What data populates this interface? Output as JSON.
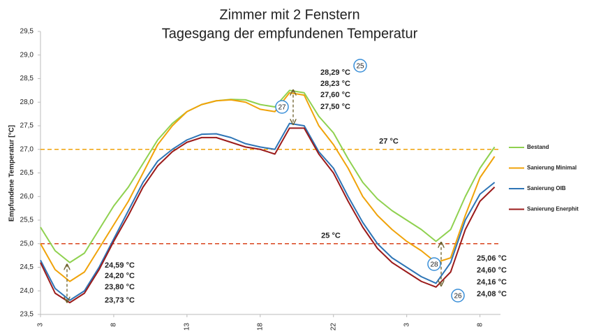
{
  "chart_data": {
    "type": "line",
    "title": [
      "Zimmer mit 2 Fenstern",
      "Tagesgang der empfundenen Temperatur"
    ],
    "y_label": "Empfundene Temperatur [°C]",
    "x": [
      0,
      1,
      2,
      3,
      4,
      5,
      6,
      7,
      8,
      9,
      10,
      11,
      12,
      13,
      14,
      15,
      16,
      17,
      18,
      19,
      20,
      21,
      22,
      23,
      24,
      25,
      26,
      27,
      28,
      29,
      30,
      31
    ],
    "xlim": [
      0,
      31.4
    ],
    "xticks": [
      {
        "value": 0,
        "label": "3"
      },
      {
        "value": 5,
        "label": "8"
      },
      {
        "value": 10,
        "label": "13"
      },
      {
        "value": 15,
        "label": "18"
      },
      {
        "value": 20,
        "label": "22"
      },
      {
        "value": 25,
        "label": "3"
      },
      {
        "value": 30,
        "label": "8"
      }
    ],
    "ylim": [
      23.5,
      29.5
    ],
    "yticks": [
      {
        "value": 23.5,
        "label": "23,5"
      },
      {
        "value": 24,
        "label": "24,0"
      },
      {
        "value": 24.5,
        "label": "24,5"
      },
      {
        "value": 25,
        "label": "25,0"
      },
      {
        "value": 25.5,
        "label": "25,5"
      },
      {
        "value": 26,
        "label": "26,0"
      },
      {
        "value": 26.5,
        "label": "26,5"
      },
      {
        "value": 27,
        "label": "27,0"
      },
      {
        "value": 27.5,
        "label": "27,5"
      },
      {
        "value": 28,
        "label": "28,0"
      },
      {
        "value": 28.5,
        "label": "28,5"
      },
      {
        "value": 29,
        "label": "29,0"
      },
      {
        "value": 29.5,
        "label": "29,5"
      }
    ],
    "grid": false,
    "legend": "right",
    "series": [
      {
        "name": "Bestand",
        "color": "#8fd14f",
        "values": [
          25.35,
          24.85,
          24.6,
          24.8,
          25.3,
          25.8,
          26.2,
          26.7,
          27.2,
          27.55,
          27.8,
          27.95,
          28.03,
          28.06,
          28.05,
          27.95,
          27.9,
          28.25,
          28.2,
          27.7,
          27.35,
          26.8,
          26.3,
          25.95,
          25.7,
          25.5,
          25.3,
          25.05,
          25.3,
          26.0,
          26.6,
          27.05
        ]
      },
      {
        "name": "Sanierung Minimal",
        "color": "#f0a30a",
        "values": [
          25.0,
          24.45,
          24.2,
          24.4,
          24.9,
          25.4,
          25.9,
          26.5,
          27.1,
          27.5,
          27.8,
          27.95,
          28.03,
          28.05,
          28.0,
          27.85,
          27.8,
          28.2,
          28.15,
          27.5,
          27.1,
          26.6,
          26.0,
          25.6,
          25.3,
          25.05,
          24.85,
          24.6,
          24.7,
          25.6,
          26.4,
          26.85
        ]
      },
      {
        "name": "Sanierung OIB",
        "color": "#2e75b6",
        "values": [
          24.65,
          24.05,
          23.8,
          24.0,
          24.5,
          25.1,
          25.7,
          26.3,
          26.75,
          27.0,
          27.2,
          27.32,
          27.33,
          27.25,
          27.12,
          27.05,
          27.0,
          27.55,
          27.5,
          26.95,
          26.6,
          26.0,
          25.45,
          25.0,
          24.7,
          24.5,
          24.3,
          24.16,
          24.6,
          25.5,
          26.05,
          26.3
        ]
      },
      {
        "name": "Sanierung Enerphit",
        "color": "#9b1b1b",
        "values": [
          24.6,
          23.95,
          23.75,
          23.95,
          24.45,
          25.05,
          25.6,
          26.2,
          26.65,
          26.95,
          27.15,
          27.25,
          27.25,
          27.15,
          27.05,
          27.0,
          26.9,
          27.45,
          27.45,
          26.9,
          26.5,
          25.9,
          25.35,
          24.9,
          24.6,
          24.4,
          24.2,
          24.08,
          24.4,
          25.3,
          25.9,
          26.2
        ]
      }
    ],
    "reference_lines": [
      {
        "value": 27,
        "label": "27 °C",
        "color": "#f0a30a"
      },
      {
        "value": 25,
        "label": "25 °C",
        "color": "#d9441c"
      }
    ],
    "annotations": [
      {
        "labels": [
          {
            "value": 24.59,
            "label": "24,59 °C"
          },
          {
            "value": 24.2,
            "label": "24,20 °C"
          },
          {
            "value": 23.8,
            "label": "23,80 °C"
          },
          {
            "value": 23.73,
            "label": "23,73 °C"
          }
        ]
      },
      {
        "labels": [
          {
            "value": 28.29,
            "label": "28,29 °C"
          },
          {
            "value": 28.23,
            "label": "28,23 °C"
          },
          {
            "value": 27.6,
            "label": "27,60 °C"
          },
          {
            "value": 27.5,
            "label": "27,50 °C"
          }
        ]
      },
      {
        "labels": [
          {
            "value": 25.06,
            "label": "25,06 °C"
          },
          {
            "value": 24.6,
            "label": "24,60 °C"
          },
          {
            "value": 24.16,
            "label": "24,16 °C"
          },
          {
            "value": 24.08,
            "label": "24,08 °C"
          }
        ]
      }
    ],
    "markers": [
      "25",
      "27",
      "28",
      "26"
    ]
  }
}
